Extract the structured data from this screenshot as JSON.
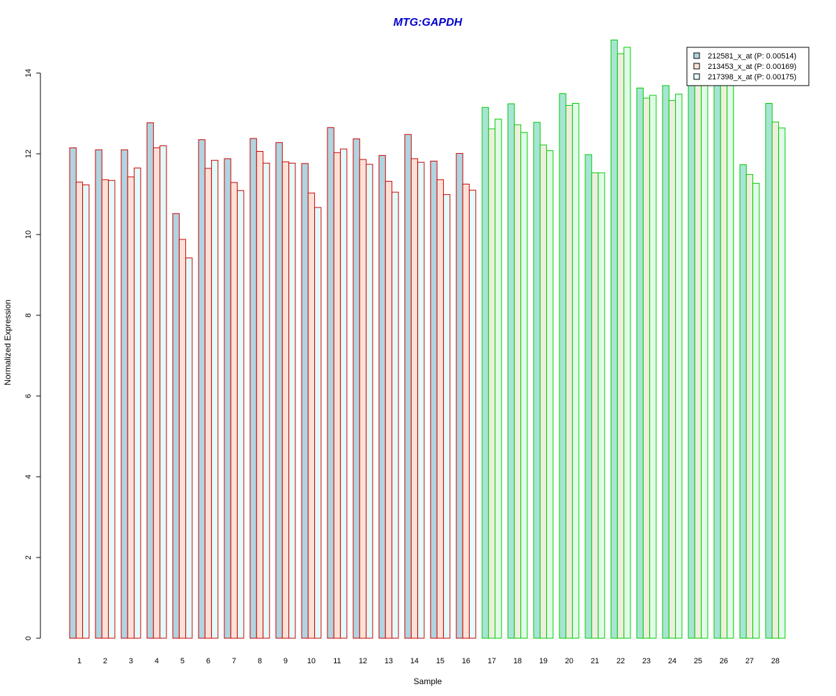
{
  "chart_data": {
    "type": "bar",
    "title": "MTG:GAPDH",
    "xlabel": "Sample",
    "ylabel": "Normalized Expression",
    "ylim": [
      0,
      14.8
    ],
    "yticks": [
      "0",
      "2",
      "4",
      "6",
      "8",
      "10",
      "12",
      "14"
    ],
    "grid": false,
    "legend_position": "top-right",
    "categories": [
      "1",
      "2",
      "3",
      "4",
      "5",
      "6",
      "7",
      "8",
      "9",
      "10",
      "11",
      "12",
      "13",
      "14",
      "15",
      "16",
      "17",
      "18",
      "19",
      "20",
      "21",
      "22",
      "23",
      "24",
      "25",
      "26",
      "27",
      "28"
    ],
    "series": [
      {
        "name": "212581_x_at (P: 0.00514)",
        "fill": "#b0d4e0",
        "values": [
          12.15,
          12.1,
          12.1,
          12.77,
          10.52,
          12.35,
          11.88,
          12.38,
          12.28,
          11.76,
          12.65,
          12.37,
          11.96,
          12.48,
          11.82,
          12.01,
          13.15,
          13.24,
          12.78,
          13.49,
          11.98,
          14.82,
          13.63,
          13.69,
          13.7,
          13.72,
          11.73,
          13.25
        ]
      },
      {
        "name": "213453_x_at (P: 0.00169)",
        "fill": "#fde0d6",
        "values": [
          11.3,
          11.36,
          11.43,
          12.15,
          9.88,
          11.64,
          11.29,
          12.06,
          11.8,
          11.03,
          12.03,
          11.86,
          11.32,
          11.88,
          11.36,
          11.25,
          12.62,
          12.72,
          12.22,
          13.2,
          11.53,
          14.48,
          13.38,
          13.32,
          13.75,
          13.8,
          11.49,
          12.79
        ]
      },
      {
        "name": "217398_x_at (P: 0.00175)",
        "fill": "#e2fafa",
        "values": [
          11.23,
          11.34,
          11.65,
          12.2,
          9.42,
          11.84,
          11.09,
          11.77,
          11.77,
          10.67,
          12.12,
          11.74,
          11.05,
          11.79,
          10.99,
          11.1,
          12.86,
          12.53,
          12.08,
          13.25,
          11.53,
          14.64,
          13.45,
          13.48,
          13.8,
          13.82,
          11.27,
          12.64
        ]
      }
    ],
    "group_outline_colors": {
      "samples_1_16": "#cc0000",
      "samples_17_28": "#00cc00"
    },
    "group_17_28_fills": [
      "#a8e4d6",
      "#eeeedd",
      "#e0fce8"
    ]
  }
}
